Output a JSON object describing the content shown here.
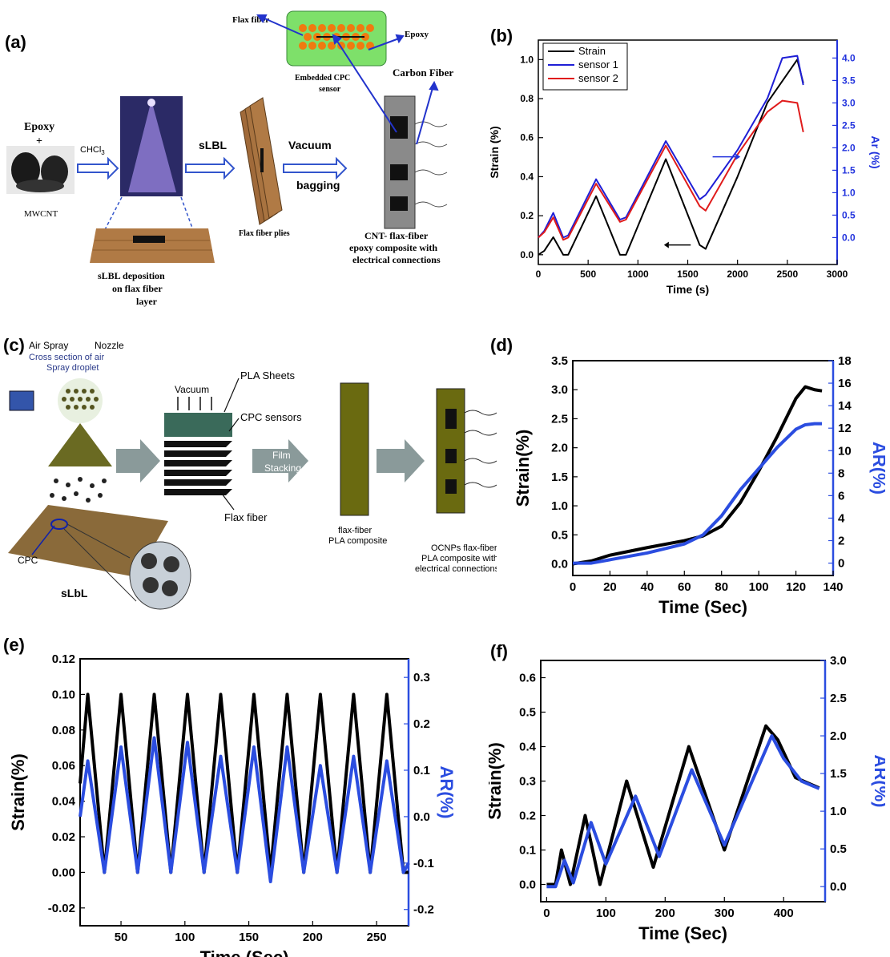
{
  "labels": {
    "a": "(a)",
    "b": "(b)",
    "c": "(c)",
    "d": "(d)",
    "e": "(e)",
    "f": "(f)"
  },
  "schematic_a": {
    "epoxy": "Epoxy",
    "plus": "+",
    "mwcnt": "MWCNT",
    "chcl3": "CHCl",
    "chcl3_sub": "3",
    "slbl": "sLBL",
    "vacuum": "Vacuum",
    "bagging": "bagging",
    "flax_fiber": "Flax fiber",
    "epoxy_label": "Epoxy",
    "embedded_1": "Embedded CPC",
    "embedded_2": "sensor",
    "carbon_fiber": "Carbon Fiber",
    "flax_plies": "Flax fiber plies",
    "slbl_dep_1": "sLBL  deposition",
    "slbl_dep_2": "on flax fiber",
    "slbl_dep_3": "layer",
    "composite_1": "CNT- flax-fiber",
    "composite_2": "epoxy composite with",
    "composite_3": "electrical connections"
  },
  "schematic_c": {
    "air_spray": "Air Spray",
    "nozzle": "Nozzle",
    "cross_1": "Cross section of air",
    "cross_2": "Spray droplet",
    "vacuum": "Vacuum",
    "pla_sheets": "PLA Sheets",
    "cpc_sensors": "CPC sensors",
    "flax_fiber": "Flax fiber",
    "film_1": "Film",
    "film_2": "Stacking",
    "cpc": "CPC",
    "slbl": "sLbL",
    "flax_pla_1": "flax-fiber",
    "flax_pla_2": "PLA composite",
    "ocnp_1": "OCNPs flax-fiber",
    "ocnp_2": "PLA composite with",
    "ocnp_3": "electrical connections"
  },
  "chart_data": [
    {
      "panel": "b",
      "type": "line",
      "xlabel": "Time (s)",
      "ylabel": "Strain (%)",
      "y2label": "Ar (%)",
      "xlim": [
        0,
        3000
      ],
      "ylim": [
        -0.05,
        1.1
      ],
      "y2lim": [
        -0.6,
        4.4
      ],
      "xticks": [
        0,
        500,
        1000,
        1500,
        2000,
        2500,
        3000
      ],
      "yticks": [
        0.0,
        0.2,
        0.4,
        0.6,
        0.8,
        1.0
      ],
      "y2ticks": [
        0.0,
        0.5,
        1.0,
        1.5,
        2.0,
        2.5,
        3.0,
        3.5,
        4.0
      ],
      "legend_position": "top-left",
      "series": [
        {
          "name": "Strain",
          "color": "#000000",
          "axis": "left",
          "x": [
            0,
            60,
            150,
            250,
            300,
            580,
            820,
            880,
            1280,
            1620,
            1680,
            2000,
            2300,
            2600,
            2660
          ],
          "y": [
            0.0,
            0.02,
            0.09,
            0.0,
            0.0,
            0.3,
            0.0,
            0.0,
            0.49,
            0.05,
            0.03,
            0.4,
            0.78,
            1.0,
            0.88
          ]
        },
        {
          "name": "sensor 1",
          "color": "#1f1fd6",
          "axis": "right",
          "x": [
            0,
            60,
            150,
            250,
            300,
            580,
            820,
            880,
            1280,
            1620,
            1680,
            2000,
            2300,
            2450,
            2600,
            2660
          ],
          "y": [
            0.0,
            0.15,
            0.55,
            0.0,
            0.05,
            1.3,
            0.4,
            0.45,
            2.15,
            0.85,
            0.95,
            1.95,
            3.1,
            4.0,
            4.05,
            3.4
          ]
        },
        {
          "name": "sensor 2",
          "color": "#e01b1b",
          "axis": "right",
          "x": [
            0,
            60,
            150,
            250,
            300,
            580,
            820,
            880,
            1280,
            1620,
            1680,
            2000,
            2300,
            2450,
            2600,
            2660
          ],
          "y": [
            0.0,
            0.12,
            0.45,
            -0.05,
            0.0,
            1.2,
            0.35,
            0.4,
            2.05,
            0.7,
            0.6,
            1.85,
            2.8,
            3.05,
            3.0,
            2.35
          ]
        }
      ],
      "annotations": [
        {
          "type": "arrow",
          "direction": "right"
        },
        {
          "type": "arrow",
          "direction": "left"
        }
      ]
    },
    {
      "panel": "d",
      "type": "line",
      "xlabel": "Time (Sec)",
      "ylabel": "Strain(%)",
      "y2label": "AR(%)",
      "xlim": [
        0,
        140
      ],
      "ylim": [
        -0.2,
        3.5
      ],
      "y2lim": [
        -1.1,
        18
      ],
      "xticks": [
        0,
        20,
        40,
        60,
        80,
        100,
        120,
        140
      ],
      "yticks": [
        0.0,
        0.5,
        1.0,
        1.5,
        2.0,
        2.5,
        3.0,
        3.5
      ],
      "y2ticks": [
        0,
        2,
        4,
        6,
        8,
        10,
        12,
        14,
        16,
        18
      ],
      "series": [
        {
          "name": "",
          "color": "#000000",
          "axis": "left",
          "x": [
            0,
            10,
            20,
            40,
            60,
            70,
            80,
            90,
            100,
            110,
            120,
            125,
            130,
            134
          ],
          "y": [
            0.0,
            0.05,
            0.15,
            0.28,
            0.4,
            0.48,
            0.65,
            1.05,
            1.6,
            2.2,
            2.85,
            3.05,
            3.0,
            2.98
          ]
        },
        {
          "name": "",
          "color": "#2b4de0",
          "axis": "right",
          "x": [
            0,
            10,
            20,
            40,
            60,
            70,
            80,
            90,
            100,
            110,
            120,
            125,
            130,
            134
          ],
          "y": [
            0.0,
            0.0,
            0.3,
            0.9,
            1.7,
            2.5,
            4.2,
            6.5,
            8.4,
            10.3,
            11.9,
            12.3,
            12.4,
            12.4
          ]
        }
      ]
    },
    {
      "panel": "e",
      "type": "line",
      "xlabel": "Time (Sec)",
      "ylabel": "Strain(%)",
      "y2label": "AR(%)",
      "xlim": [
        18,
        275
      ],
      "ylim": [
        -0.03,
        0.12
      ],
      "y2lim": [
        -0.235,
        0.34
      ],
      "xticks": [
        50,
        100,
        150,
        200,
        250
      ],
      "yticks": [
        -0.02,
        0.0,
        0.02,
        0.04,
        0.06,
        0.08,
        0.1,
        0.12
      ],
      "y2ticks": [
        -0.2,
        -0.1,
        0.0,
        0.1,
        0.2,
        0.3
      ],
      "series": [
        {
          "name": "",
          "color": "#000000",
          "axis": "left",
          "x": [
            18,
            24,
            37,
            50,
            63,
            76,
            89,
            102,
            115,
            128,
            141,
            154,
            167,
            180,
            193,
            206,
            219,
            232,
            245,
            258,
            271,
            275
          ],
          "y": [
            0.05,
            0.1,
            0.0,
            0.1,
            0.0,
            0.1,
            0.0,
            0.1,
            0.0,
            0.1,
            0.0,
            0.1,
            0.0,
            0.1,
            0.0,
            0.1,
            0.0,
            0.1,
            0.0,
            0.1,
            0.0,
            0.0
          ]
        },
        {
          "name": "",
          "color": "#2b4de0",
          "axis": "right",
          "x": [
            18,
            24,
            37,
            50,
            63,
            76,
            89,
            102,
            115,
            128,
            141,
            154,
            167,
            180,
            193,
            206,
            219,
            232,
            245,
            258,
            271,
            275
          ],
          "y": [
            0.0,
            0.12,
            -0.12,
            0.15,
            -0.12,
            0.17,
            -0.12,
            0.16,
            -0.12,
            0.13,
            -0.12,
            0.15,
            -0.14,
            0.15,
            -0.12,
            0.11,
            -0.12,
            0.13,
            -0.12,
            0.12,
            -0.12,
            -0.1
          ]
        }
      ]
    },
    {
      "panel": "f",
      "type": "line",
      "xlabel": "Time (Sec)",
      "ylabel": "Strain(%)",
      "y2label": "AR(%)",
      "xlim": [
        -10,
        470
      ],
      "ylim": [
        -0.05,
        0.65
      ],
      "y2lim": [
        -0.2,
        3.0
      ],
      "xticks": [
        0,
        100,
        200,
        300,
        400
      ],
      "yticks": [
        0.0,
        0.1,
        0.2,
        0.3,
        0.4,
        0.5,
        0.6
      ],
      "y2ticks": [
        0.0,
        0.5,
        1.0,
        1.5,
        2.0,
        2.5,
        3.0
      ],
      "series": [
        {
          "name": "",
          "color": "#000000",
          "axis": "left",
          "x": [
            0,
            15,
            25,
            40,
            65,
            90,
            135,
            180,
            240,
            300,
            370,
            390,
            420,
            460
          ],
          "y": [
            0.0,
            0.0,
            0.1,
            0.0,
            0.2,
            0.0,
            0.3,
            0.05,
            0.4,
            0.1,
            0.46,
            0.42,
            0.31,
            0.28
          ]
        },
        {
          "name": "",
          "color": "#2b4de0",
          "axis": "right",
          "x": [
            0,
            15,
            30,
            45,
            75,
            100,
            150,
            190,
            245,
            300,
            380,
            400,
            430,
            460
          ],
          "y": [
            0.0,
            0.0,
            0.35,
            0.05,
            0.85,
            0.3,
            1.2,
            0.4,
            1.55,
            0.55,
            2.0,
            1.7,
            1.4,
            1.3
          ]
        }
      ]
    }
  ]
}
